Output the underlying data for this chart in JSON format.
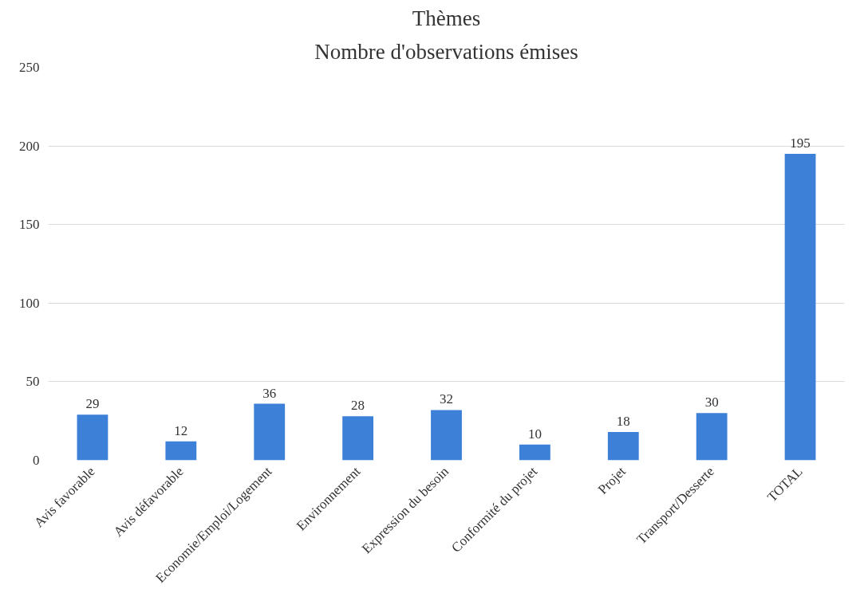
{
  "chart_data": {
    "type": "bar",
    "title": "Thèmes",
    "subtitle": "Nombre d'observations émises",
    "categories": [
      "Avis favorable",
      "Avis défavorable",
      "Economie/Emploi/Logement",
      "Environnement",
      "Expression du besoin",
      "Conformité du projet",
      "Projet",
      "Transport/Desserte",
      "TOTAL"
    ],
    "values": [
      29,
      12,
      36,
      28,
      32,
      10,
      18,
      30,
      195
    ],
    "color": "#3d80d8",
    "ylim": [
      0,
      250
    ],
    "yticks": [
      0,
      50,
      100,
      150,
      200,
      250
    ],
    "grid": "y",
    "data_labels": true
  }
}
